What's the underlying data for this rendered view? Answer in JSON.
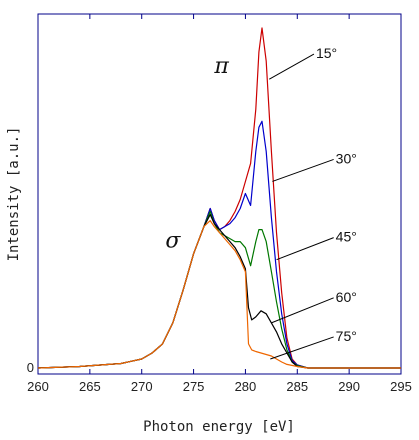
{
  "chart_data": {
    "type": "line",
    "xlabel": "Photon energy [eV]",
    "ylabel": "Intensity [a.u.]",
    "xlim": [
      260,
      295
    ],
    "ylim": [
      0,
      1.15
    ],
    "xticks": [
      260,
      265,
      270,
      275,
      280,
      285,
      290,
      295
    ],
    "yticks": [
      {
        "value": 0,
        "label": "0"
      }
    ],
    "grid": false,
    "legend": "none",
    "annotations": [
      {
        "text": "π",
        "x": 277.7,
        "y": 0.98,
        "kind": "greek"
      },
      {
        "text": "σ",
        "x": 273.0,
        "y": 0.4,
        "kind": "greek"
      },
      {
        "text": "15°",
        "x": 286.8,
        "y": 1.03,
        "line_to": [
          282.3,
          0.96
        ]
      },
      {
        "text": "30°",
        "x": 288.7,
        "y": 0.68,
        "line_to": [
          282.6,
          0.62
        ]
      },
      {
        "text": "45°",
        "x": 288.7,
        "y": 0.42,
        "line_to": [
          283.0,
          0.36
        ]
      },
      {
        "text": "60°",
        "x": 288.7,
        "y": 0.22,
        "line_to": [
          282.5,
          0.15
        ]
      },
      {
        "text": "75°",
        "x": 288.7,
        "y": 0.09,
        "line_to": [
          282.4,
          0.03
        ]
      }
    ],
    "series": [
      {
        "color": "#cc0000",
        "x": [
          260,
          264,
          268,
          270,
          271,
          272,
          273,
          274,
          275,
          276,
          276.6,
          277,
          277.5,
          278,
          278.5,
          279,
          279.5,
          280,
          280.5,
          281,
          281.3,
          281.6,
          282,
          282.5,
          283,
          283.5,
          284,
          284.5,
          285,
          286,
          290,
          295
        ],
        "y": [
          0,
          0.005,
          0.015,
          0.03,
          0.05,
          0.08,
          0.15,
          0.26,
          0.38,
          0.47,
          0.53,
          0.49,
          0.46,
          0.47,
          0.49,
          0.52,
          0.56,
          0.62,
          0.68,
          0.86,
          1.05,
          1.13,
          1.02,
          0.72,
          0.45,
          0.25,
          0.1,
          0.03,
          0.01,
          0,
          0,
          0
        ]
      },
      {
        "color": "#0000cc",
        "x": [
          260,
          264,
          268,
          270,
          271,
          272,
          273,
          274,
          275,
          276,
          276.6,
          277,
          277.5,
          278,
          278.5,
          279,
          279.5,
          280,
          280.5,
          281,
          281.3,
          281.6,
          282,
          282.5,
          283,
          283.5,
          284,
          284.5,
          285,
          286,
          290,
          295
        ],
        "y": [
          0,
          0.005,
          0.015,
          0.03,
          0.05,
          0.08,
          0.15,
          0.26,
          0.38,
          0.47,
          0.53,
          0.49,
          0.46,
          0.47,
          0.48,
          0.5,
          0.53,
          0.58,
          0.54,
          0.72,
          0.8,
          0.82,
          0.72,
          0.5,
          0.32,
          0.18,
          0.08,
          0.025,
          0.01,
          0,
          0,
          0
        ]
      },
      {
        "color": "#007700",
        "x": [
          260,
          264,
          268,
          270,
          271,
          272,
          273,
          274,
          275,
          276,
          276.6,
          277,
          277.5,
          278,
          278.5,
          279,
          279.5,
          280,
          280.5,
          281,
          281.3,
          281.6,
          282,
          282.5,
          283,
          283.5,
          284,
          284.5,
          285,
          286,
          290,
          295
        ],
        "y": [
          0,
          0.005,
          0.015,
          0.03,
          0.05,
          0.08,
          0.15,
          0.26,
          0.38,
          0.47,
          0.52,
          0.48,
          0.45,
          0.44,
          0.43,
          0.42,
          0.42,
          0.4,
          0.34,
          0.42,
          0.46,
          0.46,
          0.42,
          0.32,
          0.22,
          0.13,
          0.06,
          0.02,
          0.008,
          0,
          0,
          0
        ]
      },
      {
        "color": "#000000",
        "x": [
          260,
          264,
          268,
          270,
          271,
          272,
          273,
          274,
          275,
          276,
          276.6,
          277,
          277.5,
          278,
          278.5,
          279,
          279.5,
          280,
          280.3,
          280.6,
          281,
          281.5,
          282,
          282.5,
          283,
          283.5,
          284,
          284.5,
          285,
          286,
          290,
          295
        ],
        "y": [
          0,
          0.005,
          0.015,
          0.03,
          0.05,
          0.08,
          0.15,
          0.26,
          0.38,
          0.47,
          0.51,
          0.48,
          0.46,
          0.44,
          0.42,
          0.4,
          0.37,
          0.33,
          0.2,
          0.16,
          0.17,
          0.19,
          0.18,
          0.15,
          0.12,
          0.08,
          0.05,
          0.02,
          0.005,
          0,
          0,
          0
        ]
      },
      {
        "color": "#ee6600",
        "x": [
          260,
          264,
          268,
          270,
          271,
          272,
          273,
          274,
          275,
          276,
          276.6,
          277,
          277.5,
          278,
          278.5,
          279,
          279.5,
          280,
          280.3,
          280.6,
          281,
          281.5,
          282,
          282.5,
          283,
          283.5,
          284,
          285,
          286,
          290,
          295
        ],
        "y": [
          0,
          0.005,
          0.015,
          0.03,
          0.05,
          0.08,
          0.15,
          0.26,
          0.38,
          0.47,
          0.49,
          0.47,
          0.45,
          0.43,
          0.41,
          0.39,
          0.36,
          0.32,
          0.08,
          0.06,
          0.055,
          0.05,
          0.045,
          0.04,
          0.03,
          0.02,
          0.012,
          0.005,
          0,
          0,
          0
        ]
      }
    ]
  }
}
